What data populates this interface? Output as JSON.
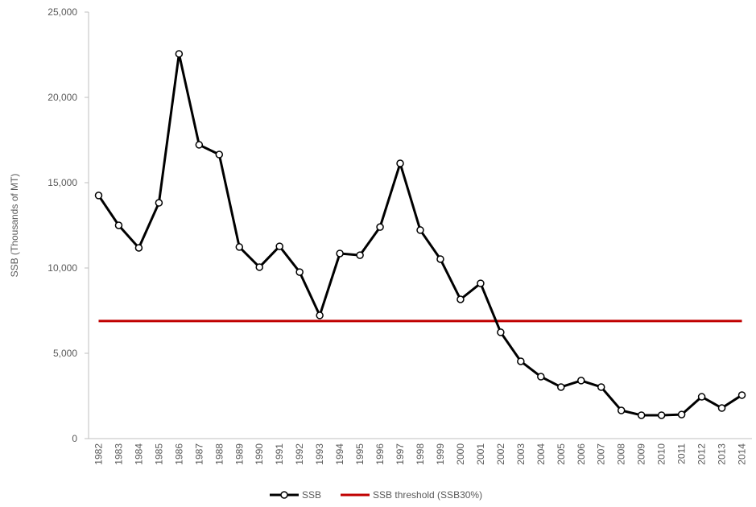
{
  "chart_data": {
    "type": "line",
    "ylabel": "SSB (Thousands of MT)",
    "categories": [
      "1982",
      "1983",
      "1984",
      "1985",
      "1986",
      "1987",
      "1988",
      "1989",
      "1990",
      "1991",
      "1992",
      "1993",
      "1994",
      "1995",
      "1996",
      "1997",
      "1998",
      "1999",
      "2000",
      "2001",
      "2002",
      "2003",
      "2004",
      "2005",
      "2006",
      "2007",
      "2008",
      "2009",
      "2010",
      "2011",
      "2012",
      "2013",
      "2014"
    ],
    "series": [
      {
        "name": "SSB",
        "color": "#000000",
        "markers": true,
        "values": [
          14250,
          12500,
          11180,
          13820,
          22550,
          17220,
          16650,
          11230,
          10050,
          11270,
          9760,
          7220,
          10850,
          10750,
          12400,
          16130,
          12220,
          10520,
          8160,
          9100,
          6230,
          4530,
          3630,
          3020,
          3400,
          3020,
          1650,
          1370,
          1370,
          1410,
          2450,
          1790,
          2550
        ]
      },
      {
        "name": "SSB threshold (SSB30%)",
        "color": "#c00000",
        "markers": false,
        "values": [
          6890,
          6890,
          6890,
          6890,
          6890,
          6890,
          6890,
          6890,
          6890,
          6890,
          6890,
          6890,
          6890,
          6890,
          6890,
          6890,
          6890,
          6890,
          6890,
          6890,
          6890,
          6890,
          6890,
          6890,
          6890,
          6890,
          6890,
          6890,
          6890,
          6890,
          6890,
          6890,
          6890
        ]
      }
    ],
    "ylim": [
      0,
      25000
    ],
    "yticks": [
      0,
      {
        "value": 5000,
        "label": "5,000"
      },
      {
        "value": 10000,
        "label": "10,000"
      },
      {
        "value": 15000,
        "label": "15,000"
      },
      {
        "value": 20000,
        "label": "20,000"
      },
      {
        "value": 25000,
        "label": "25,000"
      }
    ],
    "grid": false,
    "legend": "bottom"
  }
}
